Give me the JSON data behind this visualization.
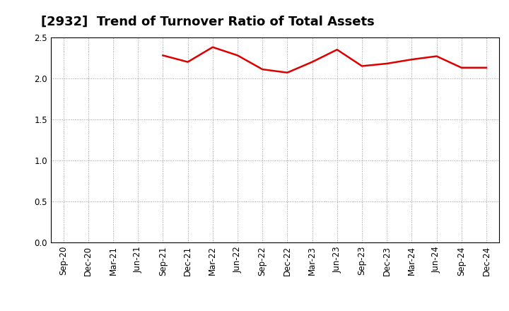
{
  "title": "[2932]  Trend of Turnover Ratio of Total Assets",
  "data_points": {
    "Sep-21": 2.28,
    "Dec-21": 2.2,
    "Mar-22": 2.38,
    "Jun-22": 2.28,
    "Sep-22": 2.11,
    "Dec-22": 2.07,
    "Mar-23": 2.2,
    "Jun-23": 2.35,
    "Sep-23": 2.15,
    "Dec-23": 2.18,
    "Mar-24": 2.23,
    "Jun-24": 2.27,
    "Sep-24": 2.13,
    "Dec-24": 2.13
  },
  "all_x_labels": [
    "Sep-20",
    "Dec-20",
    "Mar-21",
    "Jun-21",
    "Sep-21",
    "Dec-21",
    "Mar-22",
    "Jun-22",
    "Sep-22",
    "Dec-22",
    "Mar-23",
    "Jun-23",
    "Sep-23",
    "Dec-23",
    "Mar-24",
    "Jun-24",
    "Sep-24",
    "Dec-24"
  ],
  "line_color": "#dd0000",
  "line_width": 1.8,
  "ylim": [
    0.0,
    2.5
  ],
  "yticks": [
    0.0,
    0.5,
    1.0,
    1.5,
    2.0,
    2.5
  ],
  "grid_color": "#999999",
  "background_color": "#ffffff",
  "title_fontsize": 13,
  "tick_fontsize": 8.5
}
